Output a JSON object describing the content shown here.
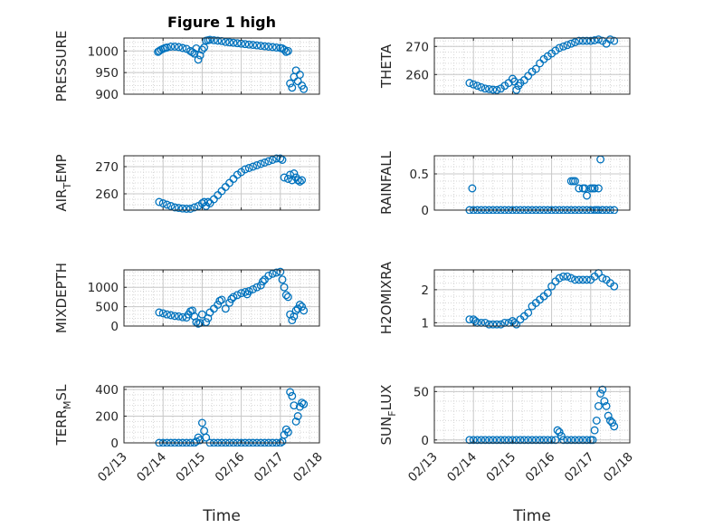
{
  "figure": {
    "title": "Figure 1 high",
    "marker_color": "#0072BD"
  },
  "chart_data": [
    {
      "type": "scatter",
      "id": "pressure",
      "ylabel": "PRESSURE",
      "ylim": [
        900,
        1030
      ],
      "yticks": [
        900,
        950,
        1000
      ],
      "xtick_labels": [
        "",
        "",
        "",
        "",
        ""
      ],
      "xlabel": "",
      "x": [
        13.87,
        13.9,
        13.95,
        14.0,
        14.05,
        14.1,
        14.2,
        14.3,
        14.4,
        14.5,
        14.6,
        14.7,
        14.75,
        14.8,
        14.85,
        14.9,
        14.95,
        15.0,
        15.05,
        15.1,
        15.15,
        15.2,
        15.3,
        15.4,
        15.5,
        15.6,
        15.7,
        15.8,
        15.9,
        16.0,
        16.1,
        16.2,
        16.3,
        16.4,
        16.5,
        16.6,
        16.7,
        16.8,
        16.9,
        17.0,
        17.05,
        17.1,
        17.15,
        17.2,
        17.25,
        17.3,
        17.35,
        17.4,
        17.45,
        17.5,
        17.55,
        17.6
      ],
      "y": [
        998,
        1000,
        1003,
        1005,
        1007,
        1008,
        1010,
        1010,
        1009,
        1007,
        1005,
        1000,
        997,
        994,
        1006,
        980,
        990,
        1003,
        1008,
        1024,
        1025,
        1026,
        1025,
        1024,
        1023,
        1021,
        1020,
        1019,
        1018,
        1017,
        1016,
        1015,
        1014,
        1013,
        1012,
        1011,
        1010,
        1009,
        1008,
        1007,
        1006,
        1003,
        998,
        1000,
        925,
        915,
        940,
        955,
        930,
        945,
        920,
        912
      ]
    },
    {
      "type": "scatter",
      "id": "theta",
      "ylabel": "THETA",
      "ylim": [
        253,
        273
      ],
      "yticks": [
        260,
        270
      ],
      "xtick_labels": [
        "",
        "",
        "",
        "",
        ""
      ],
      "xlabel": "",
      "x": [
        13.9,
        14.0,
        14.1,
        14.2,
        14.3,
        14.4,
        14.5,
        14.6,
        14.7,
        14.8,
        14.9,
        15.0,
        15.05,
        15.1,
        15.15,
        15.2,
        15.3,
        15.4,
        15.5,
        15.6,
        15.7,
        15.8,
        15.9,
        16.0,
        16.1,
        16.2,
        16.3,
        16.4,
        16.5,
        16.6,
        16.7,
        16.8,
        16.9,
        17.0,
        17.1,
        17.2,
        17.3,
        17.4,
        17.5,
        17.6
      ],
      "y": [
        257,
        256.5,
        256,
        255.5,
        255,
        254.8,
        254.6,
        254.5,
        255,
        256,
        257,
        258.5,
        257.5,
        254.5,
        256,
        257,
        258,
        259.5,
        261,
        262,
        264,
        265.5,
        266.5,
        267.5,
        268.5,
        269.5,
        270,
        270.5,
        271,
        271.5,
        272,
        272,
        272,
        272,
        272.2,
        272.5,
        272,
        271,
        272.5,
        272
      ]
    },
    {
      "type": "scatter",
      "id": "air_temp",
      "ylabel": "AIR_TEMP",
      "ylabel_main": "AIR",
      "ylabel_sub": "T",
      "ylabel_rest": "EMP",
      "ylim": [
        254,
        274
      ],
      "yticks": [
        260,
        270
      ],
      "xtick_labels": [
        "",
        "",
        "",
        "",
        ""
      ],
      "xlabel": "",
      "x": [
        13.9,
        14.0,
        14.1,
        14.2,
        14.3,
        14.4,
        14.5,
        14.6,
        14.7,
        14.8,
        14.9,
        15.0,
        15.05,
        15.1,
        15.15,
        15.2,
        15.3,
        15.4,
        15.5,
        15.6,
        15.7,
        15.8,
        15.9,
        16.0,
        16.1,
        16.2,
        16.3,
        16.4,
        16.5,
        16.6,
        16.7,
        16.8,
        16.9,
        17.0,
        17.05,
        17.1,
        17.2,
        17.25,
        17.3,
        17.35,
        17.4,
        17.45,
        17.5,
        17.55
      ],
      "y": [
        257,
        256.5,
        256,
        255.5,
        255,
        254.8,
        254.6,
        254.5,
        254.5,
        255,
        255.5,
        256.5,
        257,
        255.5,
        257,
        256.5,
        258,
        259.5,
        261,
        262.5,
        264,
        265.5,
        267,
        268,
        269,
        269.5,
        270,
        270.5,
        271,
        271.5,
        272,
        272.5,
        273,
        273,
        272.5,
        266,
        265.5,
        267,
        265,
        267.5,
        266,
        265,
        264.5,
        265
      ]
    },
    {
      "type": "scatter",
      "id": "rainfall",
      "ylabel": "RAINFALL",
      "ylim": [
        0,
        0.75
      ],
      "yticks": [
        0,
        0.5
      ],
      "xtick_labels": [
        "",
        "",
        "",
        "",
        ""
      ],
      "xlabel": "",
      "x": [
        13.9,
        14.0,
        14.1,
        14.2,
        14.3,
        14.4,
        14.5,
        14.6,
        14.7,
        14.8,
        14.9,
        15.0,
        15.1,
        15.2,
        15.3,
        15.4,
        15.5,
        15.6,
        15.7,
        15.8,
        15.9,
        16.0,
        16.1,
        16.2,
        16.3,
        16.4,
        16.5,
        16.6,
        16.7,
        16.8,
        16.9,
        17.0,
        17.1,
        17.2,
        17.3,
        17.4,
        17.5,
        17.6,
        13.97,
        16.5,
        16.55,
        16.6,
        16.7,
        16.8,
        16.85,
        16.9,
        17.0,
        17.05,
        17.1,
        17.15,
        17.2,
        17.25,
        17.3
      ],
      "y": [
        0,
        0,
        0,
        0,
        0,
        0,
        0,
        0,
        0,
        0,
        0,
        0,
        0,
        0,
        0,
        0,
        0,
        0,
        0,
        0,
        0,
        0,
        0,
        0,
        0,
        0,
        0,
        0,
        0,
        0,
        0,
        0,
        0,
        0,
        0,
        0,
        0,
        0,
        0.3,
        0.4,
        0.4,
        0.4,
        0.3,
        0.3,
        0.3,
        0.2,
        0.3,
        0.3,
        0.3,
        0,
        0.3,
        0.7,
        0
      ]
    },
    {
      "type": "scatter",
      "id": "mixdepth",
      "ylabel": "MIXDEPTH",
      "ylim": [
        0,
        1450
      ],
      "yticks": [
        0,
        500,
        1000
      ],
      "xtick_labels": [
        "",
        "",
        "",
        "",
        ""
      ],
      "xlabel": "",
      "x": [
        13.9,
        14.0,
        14.1,
        14.2,
        14.3,
        14.4,
        14.5,
        14.6,
        14.65,
        14.7,
        14.75,
        14.8,
        14.85,
        14.9,
        14.95,
        15.0,
        15.1,
        15.15,
        15.2,
        15.3,
        15.4,
        15.45,
        15.5,
        15.6,
        15.7,
        15.75,
        15.8,
        15.9,
        16.0,
        16.1,
        16.15,
        16.2,
        16.3,
        16.4,
        16.5,
        16.55,
        16.6,
        16.7,
        16.8,
        16.9,
        17.0,
        17.05,
        17.1,
        17.15,
        17.2,
        17.25,
        17.3,
        17.35,
        17.4,
        17.45,
        17.5,
        17.55,
        17.6
      ],
      "y": [
        350,
        330,
        300,
        280,
        260,
        250,
        230,
        220,
        300,
        380,
        400,
        250,
        100,
        60,
        80,
        300,
        100,
        200,
        350,
        450,
        550,
        650,
        680,
        450,
        600,
        700,
        750,
        800,
        850,
        880,
        820,
        900,
        950,
        1000,
        1050,
        1150,
        1200,
        1300,
        1350,
        1380,
        1400,
        1200,
        1000,
        800,
        750,
        300,
        150,
        250,
        400,
        450,
        550,
        500,
        400
      ]
    },
    {
      "type": "scatter",
      "id": "h2omixra",
      "ylabel": "H2OMIXRA",
      "ylim": [
        0.9,
        2.6
      ],
      "yticks": [
        1,
        2
      ],
      "xtick_labels": [
        "",
        "",
        "",
        "",
        ""
      ],
      "xlabel": "",
      "x": [
        13.9,
        14.0,
        14.05,
        14.1,
        14.2,
        14.3,
        14.4,
        14.5,
        14.6,
        14.7,
        14.8,
        14.9,
        15.0,
        15.05,
        15.1,
        15.2,
        15.3,
        15.4,
        15.5,
        15.6,
        15.7,
        15.8,
        15.9,
        16.0,
        16.1,
        16.2,
        16.3,
        16.4,
        16.5,
        16.6,
        16.7,
        16.8,
        16.9,
        17.0,
        17.1,
        17.2,
        17.3,
        17.4,
        17.5,
        17.6
      ],
      "y": [
        1.1,
        1.1,
        1.05,
        1.0,
        1.0,
        1.0,
        0.95,
        0.95,
        0.95,
        0.95,
        1.0,
        1.0,
        1.05,
        1.0,
        0.95,
        1.1,
        1.2,
        1.3,
        1.5,
        1.6,
        1.7,
        1.8,
        1.9,
        2.1,
        2.25,
        2.35,
        2.4,
        2.4,
        2.35,
        2.3,
        2.3,
        2.3,
        2.3,
        2.3,
        2.4,
        2.5,
        2.35,
        2.3,
        2.2,
        2.1
      ]
    },
    {
      "type": "scatter",
      "id": "terr_msl",
      "ylabel": "TERR_MSL",
      "ylabel_main": "TERR",
      "ylabel_sub": "M",
      "ylabel_rest": "SL",
      "ylim": [
        0,
        420
      ],
      "yticks": [
        0,
        200,
        400
      ],
      "xtick_labels": [
        "02/13",
        "02/14",
        "02/15",
        "02/16",
        "02/17",
        "02/18"
      ],
      "xlabel": "Time",
      "x": [
        13.9,
        14.0,
        14.1,
        14.2,
        14.3,
        14.4,
        14.5,
        14.6,
        14.7,
        14.8,
        14.85,
        14.9,
        14.95,
        15.0,
        15.05,
        15.1,
        15.2,
        15.3,
        15.4,
        15.5,
        15.6,
        15.7,
        15.8,
        15.9,
        16.0,
        16.1,
        16.2,
        16.3,
        16.4,
        16.5,
        16.6,
        16.7,
        16.8,
        16.9,
        17.0,
        17.05,
        17.1,
        17.15,
        17.2,
        17.25,
        17.3,
        17.35,
        17.4,
        17.45,
        17.5,
        17.55,
        17.6
      ],
      "y": [
        0,
        0,
        0,
        0,
        0,
        0,
        0,
        0,
        0,
        0,
        10,
        40,
        20,
        150,
        90,
        40,
        0,
        0,
        0,
        0,
        0,
        0,
        0,
        0,
        0,
        0,
        0,
        0,
        0,
        0,
        0,
        0,
        0,
        0,
        0,
        10,
        60,
        100,
        80,
        380,
        350,
        280,
        160,
        200,
        270,
        300,
        290
      ]
    },
    {
      "type": "scatter",
      "id": "sun_flux",
      "ylabel": "SUN_FLUX",
      "ylabel_main": "SUN",
      "ylabel_sub": "F",
      "ylabel_rest": "LUX",
      "ylim": [
        -3,
        55
      ],
      "yticks": [
        0,
        50
      ],
      "xtick_labels": [
        "02/13",
        "02/14",
        "02/15",
        "02/16",
        "02/17",
        "02/18"
      ],
      "xlabel": "Time",
      "x": [
        13.9,
        14.0,
        14.1,
        14.2,
        14.3,
        14.4,
        14.5,
        14.6,
        14.7,
        14.8,
        14.9,
        15.0,
        15.1,
        15.2,
        15.3,
        15.4,
        15.5,
        15.6,
        15.7,
        15.8,
        15.9,
        16.0,
        16.1,
        16.15,
        16.2,
        16.25,
        16.3,
        16.4,
        16.5,
        16.6,
        16.7,
        16.8,
        16.9,
        17.0,
        17.05,
        17.1,
        17.15,
        17.2,
        17.25,
        17.3,
        17.35,
        17.4,
        17.45,
        17.5,
        17.55,
        17.6
      ],
      "y": [
        0,
        0,
        0,
        0,
        0,
        0,
        0,
        0,
        0,
        0,
        0,
        0,
        0,
        0,
        0,
        0,
        0,
        0,
        0,
        0,
        0,
        0,
        0,
        10,
        8,
        4,
        0,
        0,
        0,
        0,
        0,
        0,
        0,
        0,
        0,
        10,
        20,
        35,
        48,
        52,
        40,
        35,
        25,
        20,
        18,
        14
      ]
    }
  ]
}
